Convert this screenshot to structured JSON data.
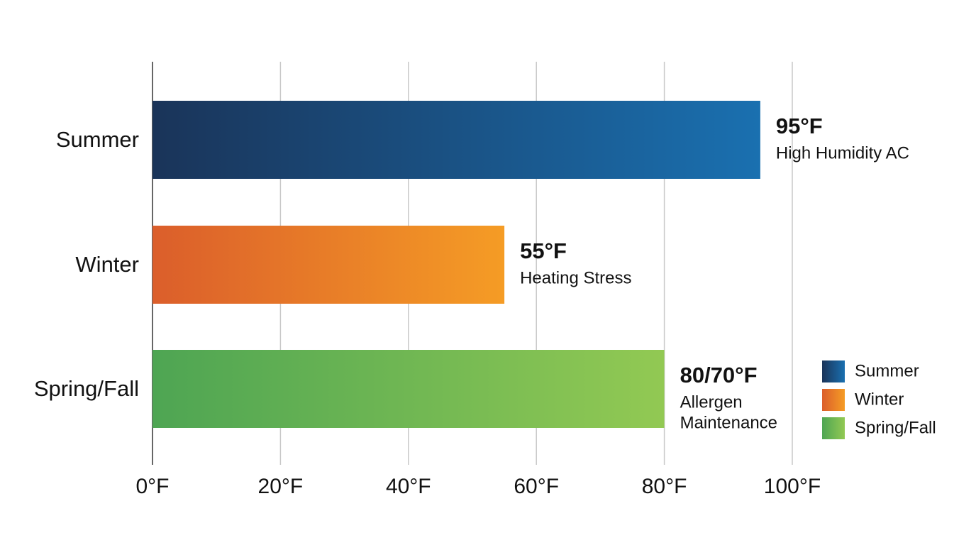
{
  "chart_data": {
    "type": "bar",
    "orientation": "horizontal",
    "categories": [
      "Summer",
      "Winter",
      "Spring/Fall"
    ],
    "values": [
      95,
      55,
      80
    ],
    "value_labels": [
      "95°F",
      "55°F",
      "80/70°F"
    ],
    "annotations": [
      [
        "High Humidity AC"
      ],
      [
        "Heating Stress"
      ],
      [
        "Allergen",
        "Maintenance"
      ]
    ],
    "colors": [
      [
        "#1a3459",
        "#1a70b0"
      ],
      [
        "#db5e2b",
        "#f59c25"
      ],
      [
        "#4ea553",
        "#92c953"
      ]
    ],
    "xlim": [
      0,
      100
    ],
    "xticks": [
      {
        "value": 0,
        "label": "0°F"
      },
      {
        "value": 20,
        "label": "20°F"
      },
      {
        "value": 40,
        "label": "40°F"
      },
      {
        "value": 60,
        "label": "60°F"
      },
      {
        "value": 80,
        "label": "80°F"
      },
      {
        "value": 100,
        "label": "100°F"
      }
    ],
    "grid": true,
    "legend": "right"
  }
}
